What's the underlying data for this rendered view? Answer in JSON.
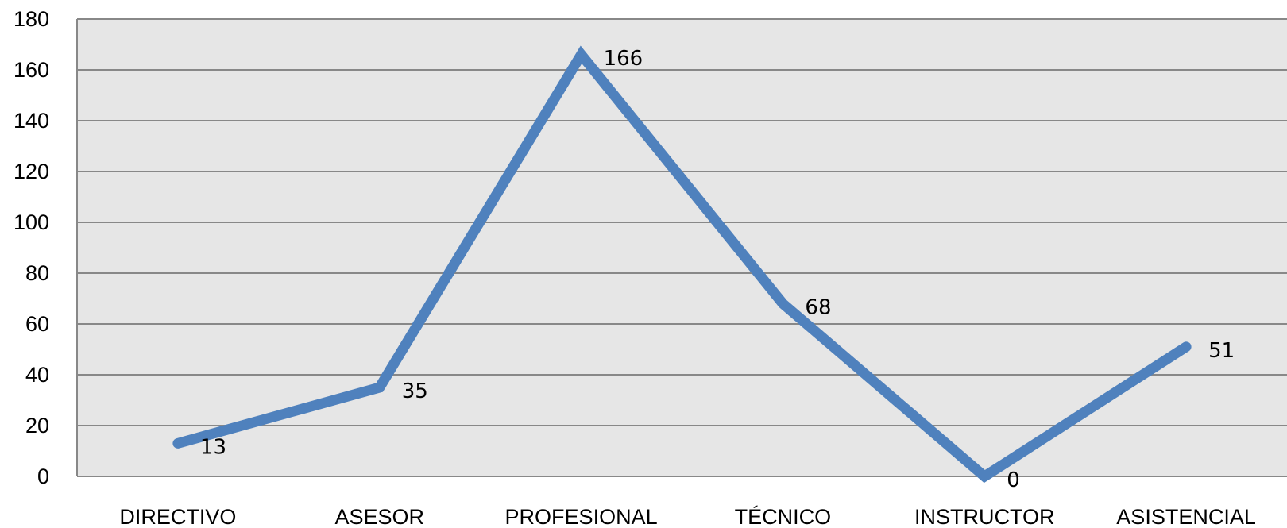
{
  "chart_data": {
    "type": "line",
    "title": "",
    "xlabel": "",
    "ylabel": "",
    "categories": [
      "DIRECTIVO",
      "ASESOR",
      "PROFESIONAL",
      "TÉCNICO",
      "INSTRUCTOR",
      "ASISTENCIAL"
    ],
    "series": [
      {
        "values": [
          13,
          35,
          166,
          68,
          0,
          51
        ]
      }
    ],
    "ylim": [
      0,
      180
    ],
    "yticks": [
      0,
      20,
      40,
      60,
      80,
      100,
      120,
      140,
      160,
      180
    ],
    "grid": true,
    "legend": "none",
    "data_labels": true,
    "colors": {
      "plot_background": "#e6e6e6",
      "gridline": "#888888",
      "series": "#4f81bd"
    }
  }
}
